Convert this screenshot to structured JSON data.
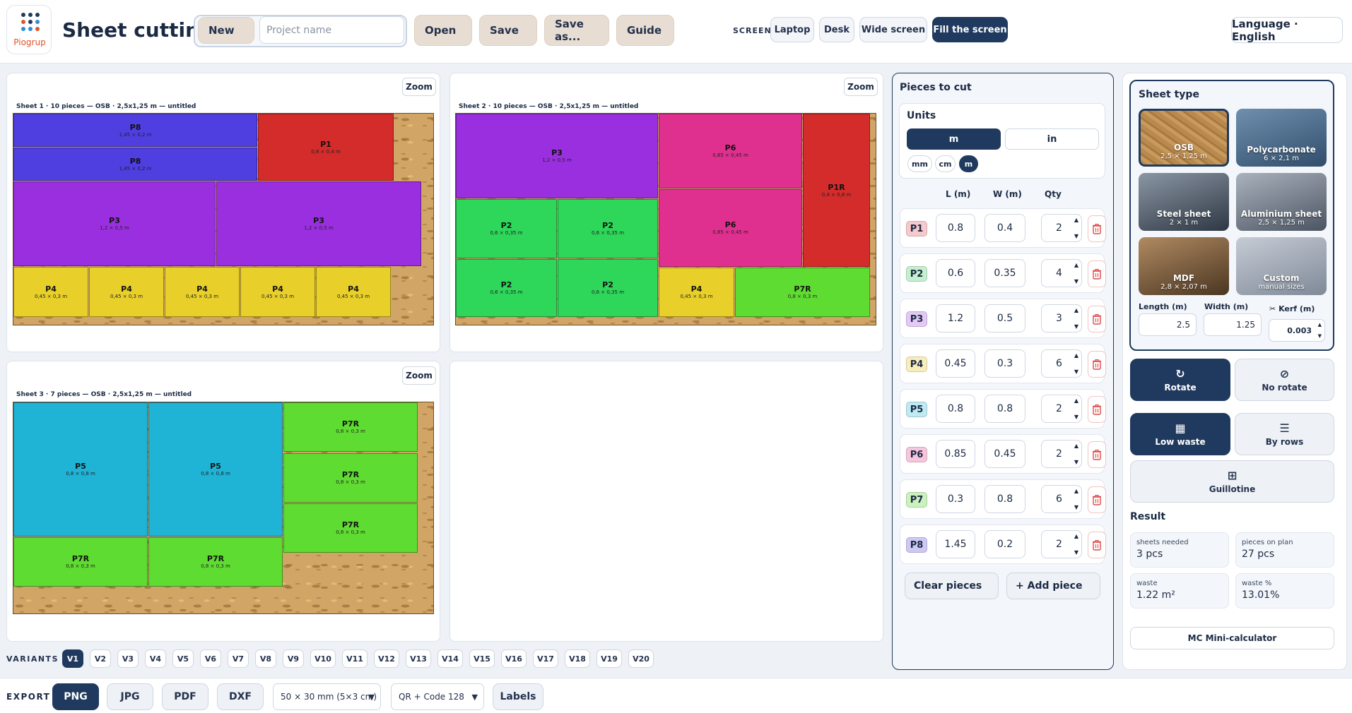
{
  "header": {
    "logo_text": "Piogrup",
    "title": "Sheet cutting",
    "new_label": "New",
    "project_placeholder": "Project name",
    "open_label": "Open",
    "save_label": "Save",
    "save_as_label": "Save as...",
    "guide_label": "Guide",
    "screen_label": "SCREEN",
    "screen_options": [
      "Laptop",
      "Desk",
      "Wide screen",
      "Fill the screen"
    ],
    "screen_active": "Fill the screen",
    "language_label": "Language · English"
  },
  "sheets": [
    {
      "caption": "Sheet 1 · 10 pieces — OSB · 2,5x1,25 m — untitled",
      "zoom_label": "Zoom",
      "pieces": [
        {
          "name": "P8",
          "dims": "1,45 × 0,2 m",
          "color": "#4f3fe0"
        },
        {
          "name": "P1",
          "dims": "0,8 × 0,4 m",
          "color": "#d42b2b"
        },
        {
          "name": "P8",
          "dims": "1,45 × 0,2 m",
          "color": "#4f3fe0"
        },
        {
          "name": "P3",
          "dims": "1,2 × 0,5 m",
          "color": "#9a2fe0"
        },
        {
          "name": "P3",
          "dims": "1,2 × 0,5 m",
          "color": "#9a2fe0"
        },
        {
          "name": "P4",
          "dims": "0,45 × 0,3 m",
          "color": "#e8cf2a"
        },
        {
          "name": "P4",
          "dims": "0,45 × 0,3 m",
          "color": "#e8cf2a"
        },
        {
          "name": "P4",
          "dims": "0,45 × 0,3 m",
          "color": "#e8cf2a"
        },
        {
          "name": "P4",
          "dims": "0,45 × 0,3 m",
          "color": "#e8cf2a"
        },
        {
          "name": "P4",
          "dims": "0,45 × 0,3 m",
          "color": "#e8cf2a"
        }
      ]
    },
    {
      "caption": "Sheet 2 · 10 pieces — OSB · 2,5x1,25 m — untitled",
      "zoom_label": "Zoom",
      "pieces": [
        {
          "name": "P3",
          "dims": "1,2 × 0,5 m",
          "color": "#9a2fe0"
        },
        {
          "name": "P6",
          "dims": "0,85 × 0,45 m",
          "color": "#e0308f"
        },
        {
          "name": "P1R",
          "dims": "0,4 × 0,8 m",
          "color": "#d42b2b"
        },
        {
          "name": "P6",
          "dims": "0,85 × 0,45 m",
          "color": "#e0308f"
        },
        {
          "name": "P2",
          "dims": "0,6 × 0,35 m",
          "color": "#2ed65a"
        },
        {
          "name": "P2",
          "dims": "0,6 × 0,35 m",
          "color": "#2ed65a"
        },
        {
          "name": "P2",
          "dims": "0,6 × 0,35 m",
          "color": "#2ed65a"
        },
        {
          "name": "P2",
          "dims": "0,6 × 0,35 m",
          "color": "#2ed65a"
        },
        {
          "name": "P4",
          "dims": "0,45 × 0,3 m",
          "color": "#e8cf2a"
        },
        {
          "name": "P7R",
          "dims": "0,8 × 0,3 m",
          "color": "#5fdc32"
        }
      ]
    },
    {
      "caption": "Sheet 3 · 7 pieces — OSB · 2,5x1,25 m — untitled",
      "zoom_label": "Zoom",
      "pieces": [
        {
          "name": "P5",
          "dims": "0,8 × 0,8 m",
          "color": "#1fb4d6"
        },
        {
          "name": "P5",
          "dims": "0,8 × 0,8 m",
          "color": "#1fb4d6"
        },
        {
          "name": "P7R",
          "dims": "0,8 × 0,3 m",
          "color": "#5fdc32"
        },
        {
          "name": "P7R",
          "dims": "0,8 × 0,3 m",
          "color": "#5fdc32"
        },
        {
          "name": "P7R",
          "dims": "0,8 × 0,3 m",
          "color": "#5fdc32"
        },
        {
          "name": "P7R",
          "dims": "0,8 × 0,3 m",
          "color": "#5fdc32"
        },
        {
          "name": "P7R",
          "dims": "0,8 × 0,3 m",
          "color": "#5fdc32"
        }
      ]
    }
  ],
  "variants": {
    "label": "VARIANTS",
    "items": [
      "V1",
      "V2",
      "V3",
      "V4",
      "V5",
      "V6",
      "V7",
      "V8",
      "V9",
      "V10",
      "V11",
      "V12",
      "V13",
      "V14",
      "V15",
      "V16",
      "V17",
      "V18",
      "V19",
      "V20"
    ],
    "active": "V1"
  },
  "export": {
    "label": "EXPORT",
    "formats": [
      "PNG",
      "JPG",
      "PDF",
      "DXF"
    ],
    "active": "PNG",
    "label_size": "50 × 30 mm (5×3 cm)",
    "code_type": "QR + Code 128",
    "labels_button": "Labels"
  },
  "pieces_panel": {
    "title": "Pieces to cut",
    "units_title": "Units",
    "units_big": [
      "m",
      "in"
    ],
    "units_small": [
      "mm",
      "cm",
      "m"
    ],
    "units_active": "m",
    "col_l": "L (m)",
    "col_w": "W (m)",
    "col_qty": "Qty",
    "rows": [
      {
        "id": "P1",
        "l": "0.8",
        "w": "0.4",
        "qty": "2",
        "color": "#f6c9cc"
      },
      {
        "id": "P2",
        "l": "0.6",
        "w": "0.35",
        "qty": "4",
        "color": "#c5f0cf"
      },
      {
        "id": "P3",
        "l": "1.2",
        "w": "0.5",
        "qty": "3",
        "color": "#e3c9f5"
      },
      {
        "id": "P4",
        "l": "0.45",
        "w": "0.3",
        "qty": "6",
        "color": "#f7eebb"
      },
      {
        "id": "P5",
        "l": "0.8",
        "w": "0.8",
        "qty": "2",
        "color": "#bfeaf3"
      },
      {
        "id": "P6",
        "l": "0.85",
        "w": "0.45",
        "qty": "2",
        "color": "#f6c6dd"
      },
      {
        "id": "P7",
        "l": "0.3",
        "w": "0.8",
        "qty": "6",
        "color": "#cbf1bd"
      },
      {
        "id": "P8",
        "l": "1.45",
        "w": "0.2",
        "qty": "2",
        "color": "#cdc8f4"
      }
    ],
    "clear_label": "Clear pieces",
    "add_label": "+ Add piece"
  },
  "sheet_type": {
    "title": "Sheet type",
    "materials": [
      {
        "name": "OSB",
        "size": "2,5 × 1,25 m"
      },
      {
        "name": "Polycarbonate",
        "size": "6 × 2,1 m"
      },
      {
        "name": "Steel sheet",
        "size": "2 × 1 m"
      },
      {
        "name": "Aluminium sheet",
        "size": "2,5 × 1,25 m"
      },
      {
        "name": "MDF",
        "size": "2,8 × 2,07 m"
      },
      {
        "name": "Custom",
        "size": "manual sizes"
      }
    ],
    "active": "OSB",
    "length_label": "Length (m)",
    "length_value": "2.5",
    "width_label": "Width (m)",
    "width_value": "1.25",
    "kerf_label": "Kerf (m)",
    "kerf_value": "0.003"
  },
  "options": {
    "rotate_label": "Rotate",
    "no_rotate_label": "No rotate",
    "low_waste_label": "Low waste",
    "by_rows_label": "By rows",
    "guillotine_label": "Guillotine"
  },
  "result": {
    "title": "Result",
    "sheets_needed_label": "sheets needed",
    "sheets_needed_value": "3 pcs",
    "pieces_on_plan_label": "pieces on plan",
    "pieces_on_plan_value": "27 pcs",
    "waste_label": "waste",
    "waste_value": "1.22 m²",
    "waste_pct_label": "waste %",
    "waste_pct_value": "13.01%",
    "mini_calc_label": "MC  Mini-calculator"
  }
}
